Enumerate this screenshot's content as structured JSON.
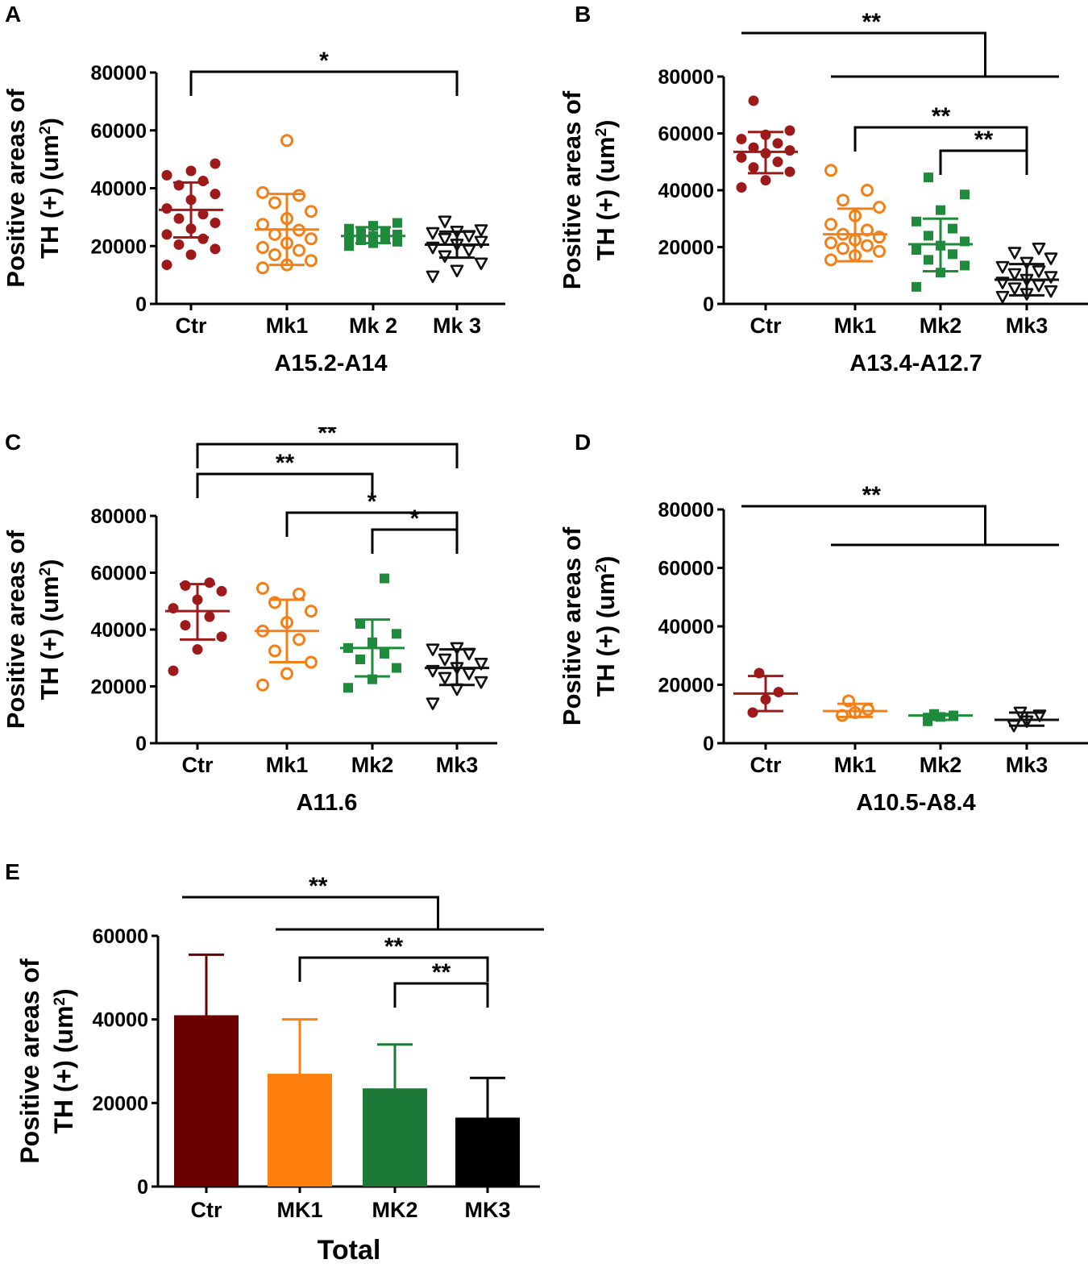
{
  "colors": {
    "ctr": "#9e1a1a",
    "mk1": "#f57f17",
    "mk2": "#1e8a3c",
    "mk3": "#111111",
    "bar_ctr": "#6b0000",
    "bar_mk1": "#ff7f0e",
    "bar_mk2": "#1d7a36",
    "bar_mk3": "#000000"
  },
  "y_axis_label_line1": "Positive areas of",
  "y_axis_label_line2": "TH (+) (um",
  "y_axis_label_sup": "2",
  "y_axis_label_end": ")",
  "chart_data": [
    {
      "panel": "A",
      "type": "scatter",
      "xlabel": "A15.2-A14",
      "categories": [
        "Ctr",
        "Mk1",
        "Mk 2",
        "Mk 3"
      ],
      "ylim": [
        0,
        80000
      ],
      "yticks": [
        0,
        20000,
        40000,
        60000,
        80000
      ],
      "series": [
        {
          "name": "Ctr",
          "marker": "filled-circle",
          "color": "#9e1a1a",
          "mean": 32500,
          "sd_low": 23000,
          "sd_high": 42000,
          "values": [
            13500,
            17000,
            19000,
            20500,
            22500,
            24000,
            26000,
            28000,
            29500,
            31000,
            33000,
            36000,
            38000,
            41000,
            42500,
            44500,
            46000,
            48500
          ]
        },
        {
          "name": "Mk1",
          "marker": "open-circle",
          "color": "#f57f17",
          "mean": 25700,
          "sd_low": 13500,
          "sd_high": 38000,
          "values": [
            12500,
            13500,
            15000,
            17000,
            18500,
            19500,
            21000,
            22500,
            24000,
            25500,
            27500,
            29500,
            32000,
            35000,
            37500,
            38500,
            56500
          ]
        },
        {
          "name": "Mk 2",
          "marker": "filled-square",
          "color": "#1e8a3c",
          "mean": 23500,
          "sd_low": 21000,
          "sd_high": 26500,
          "values": [
            20000,
            21000,
            21500,
            22000,
            22500,
            23000,
            23500,
            24000,
            24500,
            25000,
            26000,
            27000,
            28000
          ]
        },
        {
          "name": "Mk 3",
          "marker": "open-triangle-down",
          "color": "#111111",
          "mean": 20500,
          "sd_low": 16000,
          "sd_high": 25000,
          "values": [
            9500,
            11500,
            14000,
            16500,
            18500,
            19500,
            20500,
            21500,
            22500,
            23500,
            24500,
            25000,
            25500,
            28500
          ]
        }
      ],
      "brackets": [
        {
          "from": 0,
          "to": 3,
          "level": 0,
          "label": "*"
        }
      ]
    },
    {
      "panel": "B",
      "type": "scatter",
      "xlabel": "A13.4-A12.7",
      "categories": [
        "Ctr",
        "Mk1",
        "Mk2",
        "Mk3"
      ],
      "ylim": [
        0,
        80000
      ],
      "yticks": [
        0,
        20000,
        40000,
        60000,
        80000
      ],
      "series": [
        {
          "name": "Ctr",
          "marker": "filled-circle",
          "color": "#9e1a1a",
          "mean": 53500,
          "sd_low": 46000,
          "sd_high": 60500,
          "values": [
            41000,
            43500,
            46500,
            48000,
            50000,
            51500,
            53000,
            54000,
            55000,
            56500,
            58000,
            59500,
            61000,
            71500
          ]
        },
        {
          "name": "Mk1",
          "marker": "open-circle",
          "color": "#f57f17",
          "mean": 24500,
          "sd_low": 15000,
          "sd_high": 33500,
          "values": [
            15500,
            17000,
            18500,
            19500,
            20500,
            21500,
            22500,
            23500,
            24500,
            26000,
            28000,
            31000,
            34000,
            36500,
            40000,
            47000
          ]
        },
        {
          "name": "Mk2",
          "marker": "filled-square",
          "color": "#1e8a3c",
          "mean": 21000,
          "sd_low": 11500,
          "sd_high": 30000,
          "values": [
            6000,
            11000,
            13500,
            15500,
            17500,
            19000,
            20500,
            22000,
            24000,
            26500,
            29000,
            33000,
            38500,
            44500
          ]
        },
        {
          "name": "Mk3",
          "marker": "open-triangle-down",
          "color": "#111111",
          "mean": 8500,
          "sd_low": 3000,
          "sd_high": 14000,
          "values": [
            2500,
            3500,
            4500,
            5500,
            6500,
            7500,
            8500,
            9500,
            10500,
            11500,
            13000,
            14500,
            16000,
            18000,
            19500
          ]
        }
      ],
      "brackets": [
        {
          "from": 1,
          "to": 3,
          "level": 1,
          "label": "**"
        },
        {
          "from": 2,
          "to": 3,
          "level": 0,
          "label": "**"
        }
      ],
      "group_bracket": {
        "from": 0,
        "over_from": 1,
        "over_to": 3,
        "label": "**"
      }
    },
    {
      "panel": "C",
      "type": "scatter",
      "xlabel": "A11.6",
      "categories": [
        "Ctr",
        "Mk1",
        "Mk2",
        "Mk3"
      ],
      "ylim": [
        0,
        80000
      ],
      "yticks": [
        0,
        20000,
        40000,
        60000,
        80000
      ],
      "series": [
        {
          "name": "Ctr",
          "marker": "filled-circle",
          "color": "#9e1a1a",
          "mean": 46500,
          "sd_low": 36500,
          "sd_high": 56000,
          "values": [
            25500,
            33000,
            37500,
            41500,
            44500,
            47500,
            50500,
            53500,
            55500,
            56500
          ]
        },
        {
          "name": "Mk1",
          "marker": "open-circle",
          "color": "#f57f17",
          "mean": 39500,
          "sd_low": 28500,
          "sd_high": 50500,
          "values": [
            20500,
            24500,
            28500,
            32500,
            36500,
            39500,
            42500,
            46500,
            49500,
            52500,
            54500
          ]
        },
        {
          "name": "Mk2",
          "marker": "filled-square",
          "color": "#1e8a3c",
          "mean": 33500,
          "sd_low": 23500,
          "sd_high": 43500,
          "values": [
            19500,
            22500,
            26500,
            29500,
            31500,
            33500,
            35500,
            38500,
            42000,
            58000
          ]
        },
        {
          "name": "Mk3",
          "marker": "open-triangle-down",
          "color": "#111111",
          "mean": 26500,
          "sd_low": 20500,
          "sd_high": 33000,
          "values": [
            14000,
            19000,
            21500,
            23000,
            24500,
            25500,
            26500,
            28000,
            29500,
            31500,
            33000,
            33500
          ]
        }
      ],
      "brackets": [
        {
          "from": 0,
          "to": 3,
          "level": 3,
          "label": "**"
        },
        {
          "from": 0,
          "to": 2,
          "level": 2,
          "label": "**"
        },
        {
          "from": 1,
          "to": 3,
          "level": 1,
          "label": "*"
        },
        {
          "from": 2,
          "to": 3,
          "level": 0,
          "label": "*"
        }
      ]
    },
    {
      "panel": "D",
      "type": "scatter",
      "xlabel": "A10.5-A8.4",
      "categories": [
        "Ctr",
        "Mk1",
        "Mk2",
        "Mk3"
      ],
      "ylim": [
        0,
        80000
      ],
      "yticks": [
        0,
        20000,
        40000,
        60000,
        80000
      ],
      "series": [
        {
          "name": "Ctr",
          "marker": "filled-circle",
          "color": "#9e1a1a",
          "mean": 17000,
          "sd_low": 11000,
          "sd_high": 23000,
          "values": [
            10500,
            15000,
            17500,
            24000
          ]
        },
        {
          "name": "Mk1",
          "marker": "open-circle",
          "color": "#f57f17",
          "mean": 11000,
          "sd_low": 9000,
          "sd_high": 13500,
          "values": [
            9500,
            10500,
            11500,
            14500
          ]
        },
        {
          "name": "Mk2",
          "marker": "filled-square",
          "color": "#1e8a3c",
          "mean": 9500,
          "sd_low": 8000,
          "sd_high": 10000,
          "values": [
            7500,
            9000,
            9500,
            10000
          ]
        },
        {
          "name": "Mk3",
          "marker": "open-triangle-down",
          "color": "#111111",
          "mean": 8000,
          "sd_low": 6000,
          "sd_high": 10500,
          "values": [
            6000,
            7500,
            9500,
            10500
          ]
        }
      ],
      "brackets": [],
      "group_bracket": {
        "from": 0,
        "over_from": 1,
        "over_to": 3,
        "label": "**"
      }
    },
    {
      "panel": "E",
      "type": "bar",
      "xlabel": "Total",
      "categories": [
        "Ctr",
        "MK1",
        "MK2",
        "MK3"
      ],
      "ylim": [
        0,
        60000
      ],
      "yticks": [
        0,
        20000,
        40000,
        60000
      ],
      "values": [
        41000,
        27000,
        23500,
        16500
      ],
      "errors_upper": [
        55500,
        40000,
        34000,
        26000
      ],
      "bar_colors": [
        "#6b0000",
        "#ff7f0e",
        "#1d7a36",
        "#000000"
      ],
      "brackets": [
        {
          "from": 1,
          "to": 3,
          "level": 1,
          "label": "**"
        },
        {
          "from": 2,
          "to": 3,
          "level": 0,
          "label": "**"
        }
      ],
      "group_bracket": {
        "from": 0,
        "over_from": 1,
        "over_to": 3,
        "label": "**"
      }
    }
  ]
}
